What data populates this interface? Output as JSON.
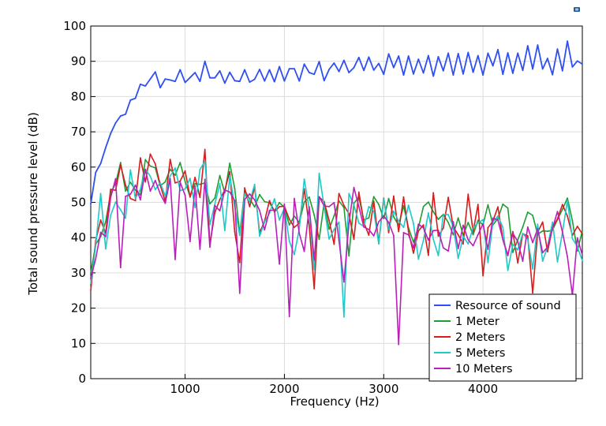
{
  "chart_data": {
    "type": "line",
    "title": "",
    "xlabel": "Frequency (Hz)",
    "ylabel": "Total sound pressure level (dB)",
    "xlim": [
      50,
      5000
    ],
    "ylim": [
      0,
      100
    ],
    "xticks": [
      1000,
      2000,
      3000,
      4000
    ],
    "yticks": [
      0,
      10,
      20,
      30,
      40,
      50,
      60,
      70,
      80,
      90,
      100
    ],
    "grid": true,
    "legend_position": "bottom-right",
    "x": [
      50,
      100,
      150,
      200,
      250,
      300,
      350,
      400,
      450,
      500,
      550,
      600,
      650,
      700,
      750,
      800,
      850,
      900,
      950,
      1000,
      1050,
      1100,
      1150,
      1200,
      1250,
      1300,
      1350,
      1400,
      1450,
      1500,
      1550,
      1600,
      1650,
      1700,
      1750,
      1800,
      1850,
      1900,
      1950,
      2000,
      2050,
      2100,
      2150,
      2200,
      2250,
      2300,
      2350,
      2400,
      2450,
      2500,
      2550,
      2600,
      2650,
      2700,
      2750,
      2800,
      2850,
      2900,
      2950,
      3000,
      3050,
      3100,
      3150,
      3200,
      3250,
      3300,
      3350,
      3400,
      3450,
      3500,
      3550,
      3600,
      3650,
      3700,
      3750,
      3800,
      3850,
      3900,
      3950,
      4000,
      4050,
      4100,
      4150,
      4200,
      4250,
      4300,
      4350,
      4400,
      4450,
      4500,
      4550,
      4600,
      4650,
      4700,
      4750,
      4800,
      4850,
      4900,
      4950,
      5000
    ],
    "series": [
      {
        "name": "Resource of sound",
        "color": "#2f4ff2",
        "values": [
          49.5,
          58.5,
          61,
          65.5,
          69.5,
          72.5,
          74.5,
          75,
          79,
          79.5,
          83.5,
          83,
          85,
          87,
          82.5,
          85,
          84.7,
          84.3,
          87.6,
          84,
          85.4,
          86.8,
          84.3,
          90,
          85.3,
          85.3,
          87.3,
          83.8,
          86.9,
          84.5,
          84.3,
          87.6,
          84.1,
          84.9,
          87.7,
          84.4,
          87.6,
          84.2,
          88.5,
          84.4,
          87.9,
          87.9,
          84.4,
          89.2,
          86.8,
          86.3,
          89.9,
          84.5,
          87.7,
          89.5,
          87.1,
          90.3,
          86.8,
          88.2,
          91.1,
          87.4,
          91.2,
          87.5,
          89.4,
          86.3,
          92.1,
          88.2,
          91.5,
          86.1,
          91.5,
          86.4,
          90.6,
          86.7,
          91.6,
          85.8,
          91.3,
          87.3,
          92.3,
          86.1,
          92.2,
          86.4,
          92.5,
          86.9,
          91.6,
          86.1,
          92.3,
          88.7,
          93.3,
          86.3,
          92.4,
          86.6,
          92.3,
          87.4,
          94.4,
          87.8,
          94.6,
          87.8,
          90.8,
          86.2,
          93.5,
          87.3,
          95.7,
          88.4,
          90.1,
          89.2
        ]
      },
      {
        "name": "1 Meter",
        "color": "#1e9e33",
        "values": [
          30,
          38.1,
          40.3,
          44.5,
          52.6,
          55.3,
          61.3,
          53.2,
          55.7,
          53.5,
          52.1,
          62.1,
          60.3,
          59.8,
          54.7,
          55.8,
          59.4,
          57.7,
          61.3,
          55.9,
          51.6,
          55.3,
          55.1,
          55.5,
          49.6,
          51.2,
          57.6,
          52.7,
          61.1,
          53.9,
          41.2,
          53.3,
          51,
          48.7,
          52.2,
          50.2,
          49.9,
          47.6,
          49.9,
          48.6,
          43.6,
          46.1,
          44.3,
          50.1,
          51.5,
          46.4,
          39.5,
          49.9,
          42.4,
          46.2,
          50.4,
          48.5,
          34.8,
          49.7,
          51.5,
          45,
          45.6,
          51.6,
          49.4,
          45.4,
          51.1,
          45.9,
          43.5,
          49,
          42.8,
          38.7,
          42.8,
          48.8,
          50.1,
          47.3,
          45.2,
          46.6,
          44.3,
          40.8,
          45.6,
          40.7,
          44.3,
          40.8,
          44.9,
          43.6,
          49.3,
          43.6,
          45.4,
          49.5,
          48.4,
          35.8,
          39.4,
          43,
          47.2,
          46.3,
          40.9,
          41.9,
          41.8,
          42.1,
          45.1,
          48,
          51.2,
          44.8,
          36.2,
          41.9
        ]
      },
      {
        "name": "2 Meters",
        "color": "#d61c1c",
        "values": [
          25,
          39.2,
          45,
          41.3,
          53.7,
          53.4,
          60.6,
          54.9,
          51.1,
          50.5,
          62.6,
          55.8,
          63.7,
          60.9,
          54.9,
          50.3,
          62.2,
          55.5,
          56,
          58.9,
          51.5,
          57.1,
          51.4,
          65,
          38,
          47.1,
          50.8,
          53.5,
          58.7,
          41.6,
          32.9,
          54.1,
          48.8,
          54.3,
          41.4,
          44.6,
          50.5,
          47.3,
          48.8,
          48.9,
          45.2,
          42.9,
          44.1,
          53.8,
          43.3,
          25.5,
          51.5,
          50.2,
          44.9,
          38.1,
          52.5,
          49.1,
          46.8,
          39.5,
          52.9,
          44.3,
          40.7,
          50.3,
          38.5,
          51.2,
          41.4,
          51.8,
          41.7,
          51.5,
          41.7,
          35.6,
          41.9,
          43.6,
          35,
          52.7,
          40.4,
          42.7,
          51.4,
          43,
          40.8,
          38.2,
          52.3,
          41.6,
          49.4,
          29.2,
          42.8,
          44.7,
          48.7,
          39.4,
          34.9,
          41.7,
          32.8,
          41.1,
          40.5,
          24.3,
          41.5,
          44.4,
          36,
          42.8,
          45.3,
          49.4,
          46.1,
          40.6,
          43.2,
          41.1
        ]
      },
      {
        "name": "5 Meters",
        "color": "#1fc9c8",
        "values": [
          27,
          37.7,
          52.5,
          36.8,
          46.3,
          50.1,
          47.9,
          45.5,
          59.2,
          51.1,
          53.7,
          59.4,
          57.4,
          53.6,
          55.6,
          51.8,
          57.5,
          59.7,
          53.3,
          53.8,
          56.8,
          48.5,
          59.3,
          61.6,
          43.7,
          49.5,
          55.3,
          42,
          57.6,
          48.8,
          40.6,
          52.4,
          50.1,
          55.1,
          40.4,
          44.4,
          46.9,
          51,
          45,
          48.4,
          39,
          35.2,
          42.5,
          56.6,
          48,
          30.9,
          58.2,
          48.7,
          39.6,
          42.3,
          44.4,
          17.5,
          52.5,
          49.3,
          44.1,
          43.2,
          48.8,
          47.5,
          38.2,
          51.1,
          42.3,
          47.5,
          44.7,
          42.9,
          49.2,
          44,
          33.9,
          39.2,
          47,
          39.5,
          34.9,
          46.6,
          46.5,
          43.1,
          34.1,
          40.4,
          38.2,
          42.8,
          44.2,
          45.1,
          32.9,
          44.4,
          46.1,
          42.9,
          30.7,
          38.1,
          36.5,
          41.2,
          39.5,
          31.1,
          43.8,
          33.3,
          37.4,
          44.4,
          33.1,
          41.5,
          50.5,
          39.7,
          37.4,
          33.5
        ]
      },
      {
        "name": "10 Meters",
        "color": "#b91fb9",
        "values": [
          28.5,
          34,
          41.5,
          40.3,
          51.3,
          56.7,
          31.5,
          51.7,
          52.3,
          54.9,
          50.7,
          59.3,
          53.2,
          56.2,
          52.4,
          49.7,
          56.7,
          33.8,
          55.7,
          52,
          38.9,
          54.6,
          36.7,
          56.5,
          37.3,
          49.1,
          47.6,
          53.5,
          52.9,
          50.5,
          24.2,
          50.8,
          52.4,
          50.7,
          47.7,
          42.2,
          47.7,
          47.8,
          32.5,
          49.5,
          17.6,
          51.1,
          41.2,
          36.1,
          48.7,
          33.7,
          51.6,
          49,
          48.8,
          49.9,
          39.2,
          27.4,
          44,
          54.2,
          48.8,
          43,
          42.3,
          40.5,
          44.5,
          46.1,
          44.3,
          40.6,
          9.7,
          41.4,
          40.8,
          37.1,
          43.8,
          42.8,
          39.3,
          42,
          42.1,
          37.1,
          36.2,
          44.5,
          36.9,
          43.5,
          39.4,
          37.7,
          40.8,
          43.9,
          36.7,
          45.5,
          45,
          39.5,
          35,
          41.2,
          38.9,
          33.3,
          43,
          38.6,
          42.5,
          35.7,
          37.3,
          42.6,
          47.4,
          41.6,
          34.6,
          23.7,
          39.9,
          35.1
        ]
      }
    ]
  },
  "corner_icon": "small-app-icon"
}
